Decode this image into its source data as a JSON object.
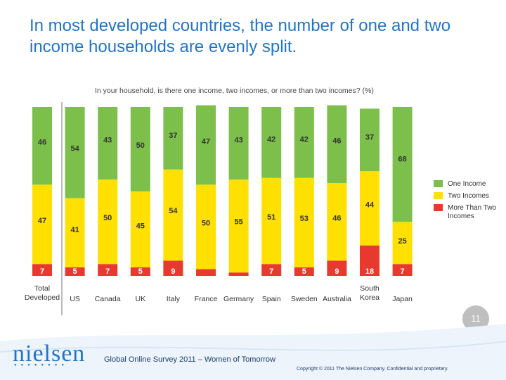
{
  "title": "In most developed countries, the number of one and two income households are evenly split.",
  "subtitle": "In your household, is there one income, two incomes, or more than two incomes? (%)",
  "legend": {
    "one": "One Income",
    "two": "Two Incomes",
    "more": "More Than Two Incomes"
  },
  "page_number": "11",
  "footer": {
    "logo": "nielsen",
    "survey": "Global Online Survey 2011 – Women of Tomorrow",
    "copyright": "Copyright © 2011 The Nielsen Company. Confidential and proprietary."
  },
  "chart_data": {
    "type": "bar",
    "stacked": true,
    "categories": [
      [
        "Total",
        "Developed"
      ],
      [
        "US"
      ],
      [
        "Canada"
      ],
      [
        "UK"
      ],
      [
        "Italy"
      ],
      [
        "France"
      ],
      [
        "Germany"
      ],
      [
        "Spain"
      ],
      [
        "Sweden"
      ],
      [
        "Australia"
      ],
      [
        "South",
        "Korea"
      ],
      [
        "Japan"
      ]
    ],
    "series": [
      {
        "name": "More Than Two Incomes",
        "color": "#e8392f",
        "values": [
          7,
          5,
          7,
          5,
          9,
          4,
          2,
          7,
          5,
          9,
          18,
          7
        ],
        "labels": [
          "7",
          "5",
          "7",
          "5",
          "9",
          "",
          "",
          "7",
          "5",
          "9",
          "18",
          "7"
        ]
      },
      {
        "name": "Two Incomes",
        "color": "#ffe000",
        "values": [
          47,
          41,
          50,
          45,
          54,
          50,
          55,
          51,
          53,
          46,
          44,
          25
        ],
        "labels": [
          "47",
          "41",
          "50",
          "45",
          "54",
          "50",
          "55",
          "51",
          "53",
          "46",
          "44",
          "25"
        ]
      },
      {
        "name": "One Income",
        "color": "#7cc04b",
        "values": [
          46,
          54,
          43,
          50,
          37,
          47,
          43,
          42,
          42,
          46,
          37,
          68
        ],
        "labels": [
          "46",
          "54",
          "43",
          "50",
          "37",
          "47",
          "43",
          "42",
          "42",
          "46",
          "37",
          "68"
        ]
      }
    ],
    "ylim": [
      0,
      100
    ],
    "xlabel": "",
    "ylabel": ""
  }
}
